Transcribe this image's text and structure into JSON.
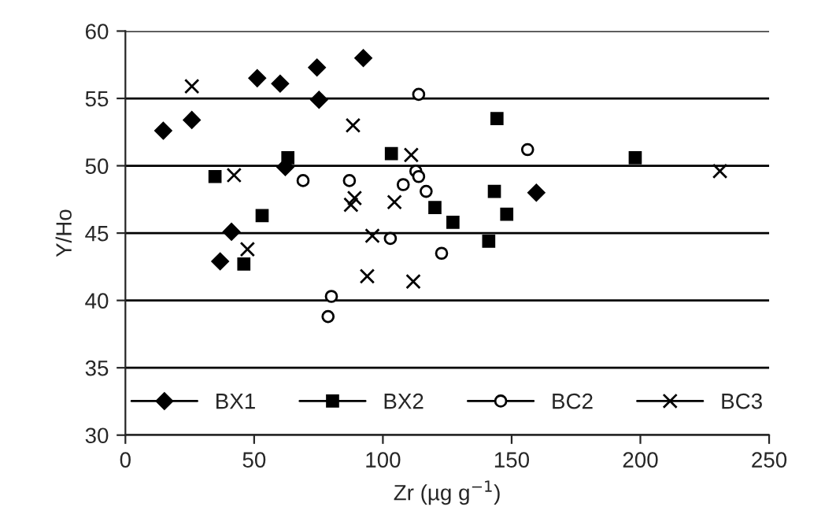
{
  "chart_data": {
    "type": "scatter",
    "xlabel": "Zr (µg g$^{−1}$)",
    "ylabel": "Y/Ho",
    "xlim": [
      0,
      250
    ],
    "xticks": [
      0,
      50,
      100,
      150,
      200,
      250
    ],
    "ylim": [
      30,
      60
    ],
    "yticks": [
      30,
      35,
      40,
      45,
      50,
      55,
      60
    ],
    "grid": "y",
    "legend": "bottom",
    "series": [
      {
        "name": "BX1",
        "color": "#000000",
        "marker": "diamond",
        "x": [
          14.7,
          25.8,
          36.8,
          41.2,
          51.2,
          60.1,
          62.1,
          74.4,
          75.2,
          92.4,
          159.6
        ],
        "values": [
          52.6,
          53.4,
          42.9,
          45.1,
          56.5,
          56.1,
          49.9,
          57.3,
          54.9,
          58.0,
          48.0
        ]
      },
      {
        "name": "BX2",
        "color": "#000000",
        "marker": "square",
        "x": [
          34.8,
          46.0,
          53.1,
          63.1,
          103.3,
          120.2,
          127.2,
          143.3,
          148.1,
          141.1,
          198.0,
          144.3
        ],
        "values": [
          49.2,
          42.7,
          46.3,
          50.6,
          50.9,
          46.9,
          45.8,
          48.1,
          46.4,
          44.4,
          50.6,
          53.5
        ]
      },
      {
        "name": "BC2",
        "color": "#000000",
        "marker": "circle",
        "x": [
          69.0,
          87.0,
          107.9,
          112.8,
          113.9,
          116.8,
          102.9,
          80.0,
          78.7,
          113.9,
          156.2,
          122.8
        ],
        "values": [
          48.9,
          48.9,
          48.6,
          49.6,
          49.2,
          48.1,
          44.6,
          40.3,
          38.8,
          55.3,
          51.2,
          43.5
        ]
      },
      {
        "name": "BC3",
        "color": "#000000",
        "marker": "cross",
        "x": [
          25.8,
          42.2,
          47.4,
          88.4,
          89.0,
          87.6,
          104.5,
          111.0,
          95.9,
          93.9,
          111.8,
          230.9
        ],
        "values": [
          55.9,
          49.3,
          43.8,
          53.0,
          47.6,
          47.1,
          47.3,
          50.8,
          44.8,
          41.8,
          41.4,
          49.6
        ]
      }
    ]
  }
}
